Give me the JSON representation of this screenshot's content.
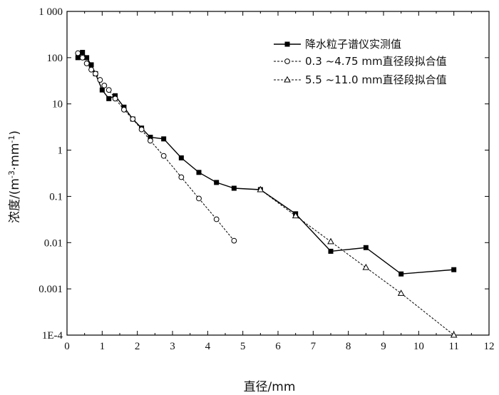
{
  "chart_data": {
    "type": "line",
    "xlabel": "直径/mm",
    "ylabel_main": "浓度/(m",
    "ylabel_sup1": "-3",
    "ylabel_mid": "·mm",
    "ylabel_sup2": "-1",
    "ylabel_end": ")",
    "xlim": [
      0,
      12
    ],
    "ylim": [
      0.0001,
      1000
    ],
    "yscale": "log",
    "x_ticks": [
      0,
      1,
      2,
      3,
      4,
      5,
      6,
      7,
      8,
      9,
      10,
      11,
      12
    ],
    "x_tick_labels": [
      "0",
      "1",
      "2",
      "3",
      "4",
      "5",
      "6",
      "7",
      "8",
      "9",
      "10",
      "11",
      "12"
    ],
    "y_ticks": [
      1000,
      100,
      10,
      1,
      0.1,
      0.01,
      0.001,
      0.0001
    ],
    "y_tick_labels": [
      "1 000",
      "100",
      "10",
      "1",
      "0.1",
      "0.01",
      "0.001",
      "1E-4"
    ],
    "legend_position": "top-right",
    "series": [
      {
        "name": "降水粒子谱仪实测值",
        "style": "solid",
        "marker": "filled-square",
        "color": "#000000",
        "x": [
          0.31,
          0.44,
          0.56,
          0.69,
          0.81,
          1.0,
          1.19,
          1.37,
          1.62,
          1.87,
          2.12,
          2.37,
          2.75,
          3.25,
          3.75,
          4.25,
          4.75,
          5.5,
          6.5,
          7.5,
          8.5,
          9.5,
          11.0
        ],
        "y": [
          100,
          130,
          100,
          70,
          45,
          20,
          13,
          15,
          8.5,
          4.7,
          3.0,
          1.9,
          1.75,
          0.68,
          0.33,
          0.2,
          0.15,
          0.14,
          0.042,
          0.0065,
          0.0078,
          0.0021,
          0.0026
        ]
      },
      {
        "name": "0.3 ~4.75 mm直径段拟合值",
        "style": "dashed",
        "marker": "open-circle",
        "color": "#000000",
        "x": [
          0.31,
          0.44,
          0.56,
          0.69,
          0.81,
          0.94,
          1.06,
          1.19,
          1.37,
          1.62,
          1.87,
          2.12,
          2.37,
          2.75,
          3.25,
          3.75,
          4.25,
          4.75
        ],
        "y": [
          125,
          100,
          75,
          55,
          45,
          33,
          25,
          20,
          13,
          7.5,
          4.7,
          2.8,
          1.6,
          0.75,
          0.26,
          0.09,
          0.032,
          0.011
        ]
      },
      {
        "name": "5.5 ~11.0 mm直径段拟合值",
        "style": "dashed",
        "marker": "open-triangle",
        "color": "#000000",
        "x": [
          5.5,
          6.5,
          7.5,
          8.5,
          9.5,
          11.0
        ],
        "y": [
          0.14,
          0.038,
          0.0105,
          0.0029,
          0.0008,
          0.0001
        ]
      }
    ]
  }
}
